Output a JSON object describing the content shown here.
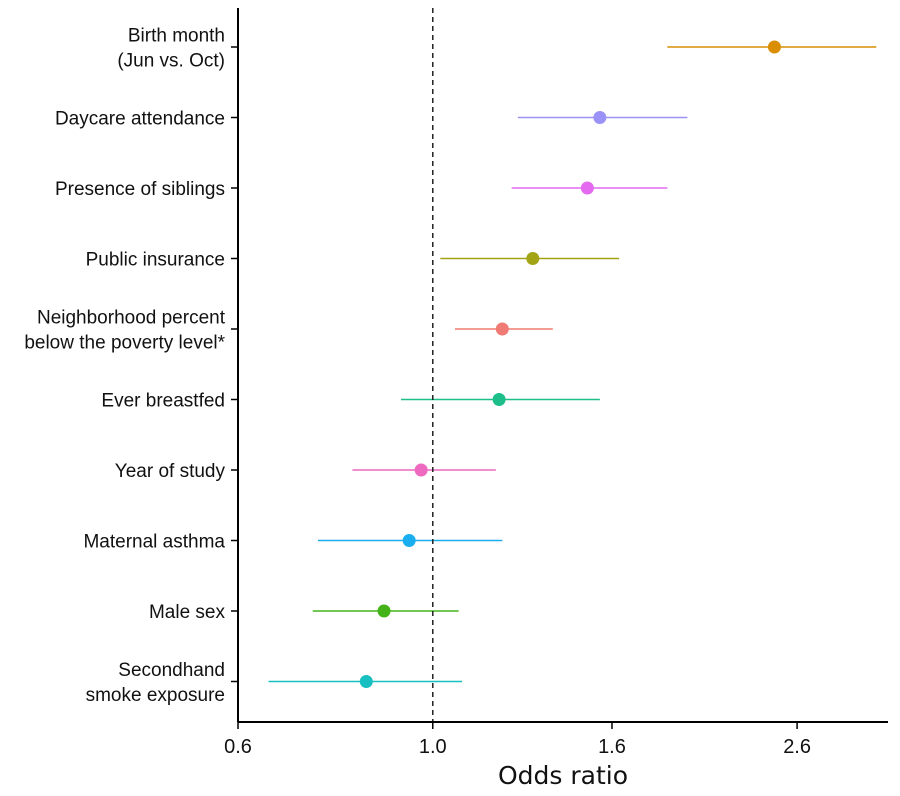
{
  "chart_data": {
    "type": "forest",
    "xlabel": "Odds ratio",
    "x_scale": "log",
    "xlim": [
      0.6,
      3.3
    ],
    "xticks": [
      0.6,
      1.0,
      1.6,
      2.6
    ],
    "xtick_labels": [
      "0.6",
      "1.0",
      "1.6",
      "2.6"
    ],
    "reference_line": 1.0,
    "grid": false,
    "legend": "none",
    "rows": [
      {
        "label": [
          "Birth month",
          "(Jun vs. Oct)"
        ],
        "estimate": 2.45,
        "lower": 1.85,
        "upper": 3.2,
        "color": "#D98E04"
      },
      {
        "label": [
          "Daycare attendance"
        ],
        "estimate": 1.55,
        "lower": 1.25,
        "upper": 1.95,
        "color": "#9A92F7"
      },
      {
        "label": [
          "Presence of siblings"
        ],
        "estimate": 1.5,
        "lower": 1.23,
        "upper": 1.85,
        "color": "#E46BF0"
      },
      {
        "label": [
          "Public insurance"
        ],
        "estimate": 1.3,
        "lower": 1.02,
        "upper": 1.63,
        "color": "#A3A316"
      },
      {
        "label": [
          "Neighborhood percent",
          "below the poverty level*"
        ],
        "estimate": 1.2,
        "lower": 1.06,
        "upper": 1.37,
        "color": "#F07A74"
      },
      {
        "label": [
          "Ever breastfed"
        ],
        "estimate": 1.19,
        "lower": 0.92,
        "upper": 1.55,
        "color": "#1DBE8A"
      },
      {
        "label": [
          "Year of study"
        ],
        "estimate": 0.97,
        "lower": 0.81,
        "upper": 1.18,
        "color": "#EE69C0"
      },
      {
        "label": [
          "Maternal asthma"
        ],
        "estimate": 0.94,
        "lower": 0.74,
        "upper": 1.2,
        "color": "#1AAEF0"
      },
      {
        "label": [
          "Male sex"
        ],
        "estimate": 0.88,
        "lower": 0.73,
        "upper": 1.07,
        "color": "#44B31A"
      },
      {
        "label": [
          "Secondhand",
          "smoke exposure"
        ],
        "estimate": 0.84,
        "lower": 0.65,
        "upper": 1.08,
        "color": "#17BFC0"
      }
    ]
  }
}
